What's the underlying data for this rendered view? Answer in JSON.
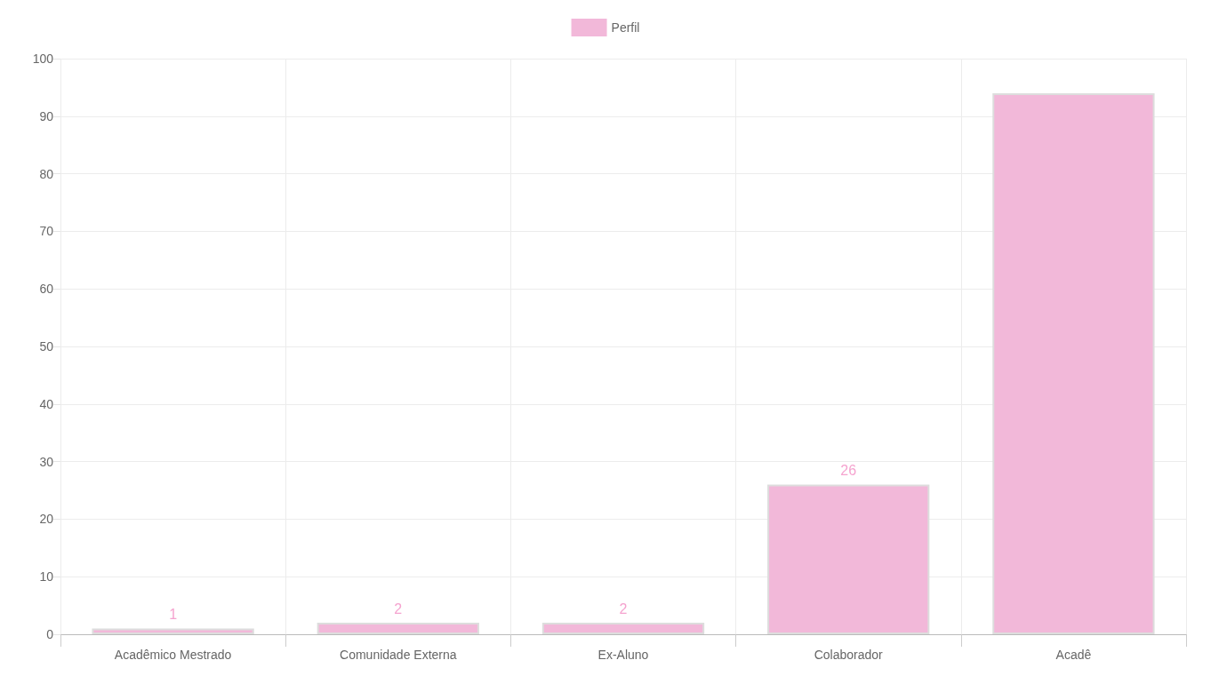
{
  "chart_data": {
    "type": "bar",
    "categories": [
      "Acadêmico Mestrado",
      "Comunidade Externa",
      "Ex-Aluno",
      "Colaborador",
      "Acadê"
    ],
    "series": [
      {
        "name": "Perfil",
        "color": "#f2b8d9",
        "values": [
          1,
          2,
          2,
          26,
          94
        ],
        "value_labels": [
          "1",
          "2",
          "2",
          "26",
          null
        ]
      }
    ],
    "ylim": [
      0,
      100
    ],
    "yticks": [
      0,
      10,
      20,
      30,
      40,
      50,
      60,
      70,
      80,
      90,
      100
    ],
    "grid": true,
    "legend": "top"
  }
}
